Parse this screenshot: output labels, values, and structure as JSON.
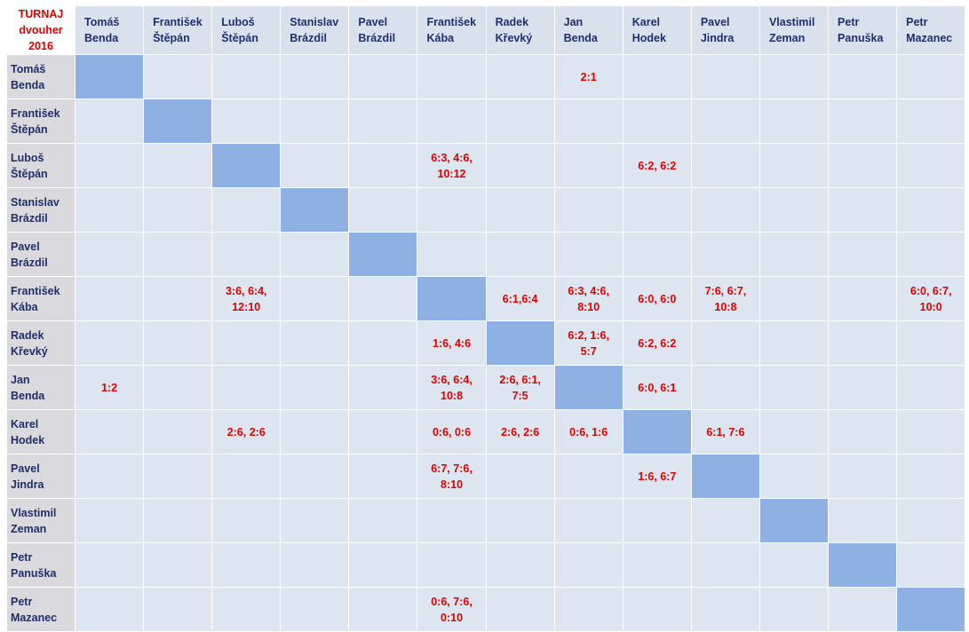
{
  "corner": {
    "line1": "TURNAJ",
    "line2": "dvouher",
    "line3": "2016"
  },
  "players": [
    {
      "first": "Tomáš",
      "last": "Benda"
    },
    {
      "first": "František",
      "last": "Štěpán"
    },
    {
      "first": "Luboš",
      "last": "Štěpán"
    },
    {
      "first": "Stanislav",
      "last": "Brázdil"
    },
    {
      "first": "Pavel",
      "last": "Brázdil"
    },
    {
      "first": "František",
      "last": "Kába"
    },
    {
      "first": "Radek",
      "last": "Křevký"
    },
    {
      "first": "Jan",
      "last": "Benda"
    },
    {
      "first": "Karel",
      "last": "Hodek"
    },
    {
      "first": "Pavel",
      "last": "Jindra"
    },
    {
      "first": "Vlastimil",
      "last": "Zeman"
    },
    {
      "first": "Petr",
      "last": "Panuška"
    },
    {
      "first": "Petr",
      "last": "Mazanec"
    }
  ],
  "results": [
    [
      "",
      "",
      "",
      "",
      "",
      "",
      "",
      "2:1",
      "",
      "",
      "",
      "",
      ""
    ],
    [
      "",
      "",
      "",
      "",
      "",
      "",
      "",
      "",
      "",
      "",
      "",
      "",
      ""
    ],
    [
      "",
      "",
      "",
      "",
      "",
      "6:3, 4:6, 10:12",
      "",
      "",
      "6:2, 6:2",
      "",
      "",
      "",
      ""
    ],
    [
      "",
      "",
      "",
      "",
      "",
      "",
      "",
      "",
      "",
      "",
      "",
      "",
      ""
    ],
    [
      "",
      "",
      "",
      "",
      "",
      "",
      "",
      "",
      "",
      "",
      "",
      "",
      ""
    ],
    [
      "",
      "",
      "3:6, 6:4, 12:10",
      "",
      "",
      "",
      "6:1,6:4",
      "6:3, 4:6, 8:10",
      "6:0, 6:0",
      "7:6, 6:7, 10:8",
      "",
      "",
      "6:0, 6:7, 10:0"
    ],
    [
      "",
      "",
      "",
      "",
      "",
      "1:6, 4:6",
      "",
      "6:2, 1:6, 5:7",
      "6:2, 6:2",
      "",
      "",
      "",
      ""
    ],
    [
      "1:2",
      "",
      "",
      "",
      "",
      "3:6, 6:4, 10:8",
      "2:6, 6:1, 7:5",
      "",
      "6:0, 6:1",
      "",
      "",
      "",
      ""
    ],
    [
      "",
      "",
      "2:6, 2:6",
      "",
      "",
      "0:6, 0:6",
      "2:6, 2:6",
      "0:6, 1:6",
      "",
      "6:1, 7:6",
      "",
      "",
      ""
    ],
    [
      "",
      "",
      "",
      "",
      "",
      "6:7, 7:6, 8:10",
      "",
      "",
      "1:6, 6:7",
      "",
      "",
      "",
      ""
    ],
    [
      "",
      "",
      "",
      "",
      "",
      "",
      "",
      "",
      "",
      "",
      "",
      "",
      ""
    ],
    [
      "",
      "",
      "",
      "",
      "",
      "",
      "",
      "",
      "",
      "",
      "",
      "",
      ""
    ],
    [
      "",
      "",
      "",
      "",
      "",
      "0:6, 7:6, 0:10",
      "",
      "",
      "",
      "",
      "",
      "",
      ""
    ]
  ],
  "colors": {
    "header_fill": "#d9e1ec",
    "row_header_fill": "#d9d9de",
    "cell_fill": "#dde5f0",
    "diagonal_fill": "#8eb0e2",
    "name_text": "#1f2f6e",
    "score_text": "#e00000"
  }
}
